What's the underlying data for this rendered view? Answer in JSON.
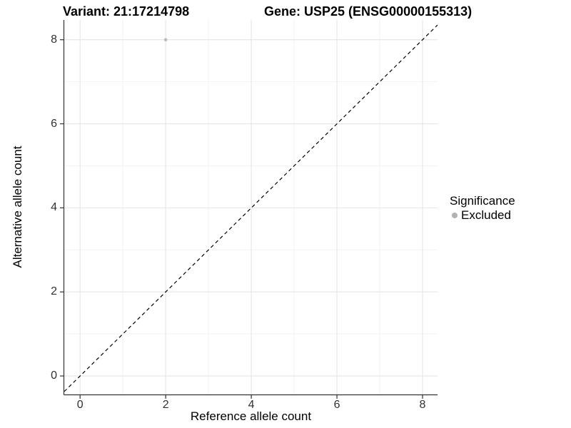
{
  "chart_data": {
    "type": "scatter",
    "title_left": "Variant: 21:17214798",
    "title_right": "Gene: USP25 (ENSG00000155313)",
    "xlabel": "Reference allele count",
    "ylabel": "Alternative allele count",
    "xlim": [
      -0.37,
      8.35
    ],
    "ylim": [
      -0.44,
      8.47
    ],
    "xticks": [
      0,
      2,
      4,
      6,
      8
    ],
    "yticks": [
      0,
      2,
      4,
      6,
      8
    ],
    "minor_xticks": [
      1,
      3,
      5,
      7
    ],
    "minor_yticks": [
      1,
      3,
      5,
      7
    ],
    "grid": true,
    "reference_line": {
      "type": "abline",
      "slope": 1,
      "intercept": 0,
      "style": "dashed"
    },
    "series": [
      {
        "name": "Excluded",
        "points": [
          {
            "x": 2,
            "y": 8
          }
        ]
      }
    ],
    "legend": {
      "title": "Significance",
      "position": "right",
      "entries": [
        {
          "label": "Excluded"
        }
      ]
    },
    "colors": {
      "point": "#bcbcbc",
      "legend_key": "#b2b2b2",
      "reference_line": "#000000",
      "axis_line": "#333333",
      "grid_major": "#e5e5e5",
      "grid_minor": "#f2f2f2",
      "tick_text": "#303030",
      "background": "#ffffff"
    }
  }
}
